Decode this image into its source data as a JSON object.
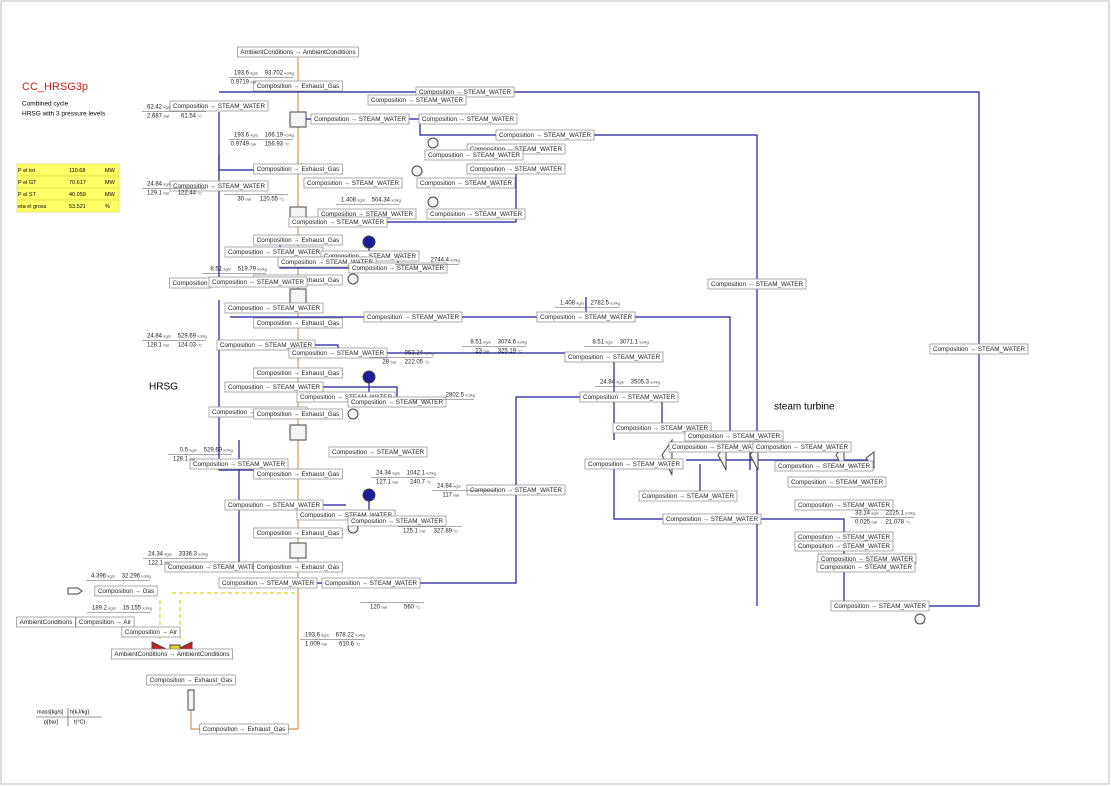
{
  "header": {
    "title": "CC_HRSG3p",
    "subtitle": [
      "Combined cycle",
      "HRSG with 3 pressure levels"
    ]
  },
  "results_table": {
    "rows": [
      [
        "P el tot",
        "110.68",
        "MW"
      ],
      [
        "P el GT",
        "70.617",
        "MW"
      ],
      [
        "P el ST",
        "40.059",
        "MW"
      ],
      [
        "eta el gross",
        "53.521",
        "%"
      ]
    ]
  },
  "section_labels": [
    "HRSG",
    "steam turbine"
  ],
  "units": {
    "m": "kg/s",
    "h": "kJ/kg",
    "p": "bar",
    "t": "°C"
  },
  "legend": {
    "m": "mass[kg/s]",
    "h": "h[kJ/kg]",
    "p": "p[bar]",
    "t": "t(°C)"
  },
  "connectors": [
    "AmbientConditions → AmbientConditions",
    "Composition → Exhaust_Gas",
    "Composition → STEAM_WATER",
    "Composition → STEAM_WATER",
    "Composition → STEAM_WATER",
    "Composition → STEAM_WATER",
    "Composition → STEAM_WATER",
    "Composition → STEAM_WATER",
    "Composition → STEAM_WATER",
    "Composition → STEAM_WATER",
    "Composition → Exhaust_Gas",
    "Composition → STEAM_WATER",
    "Composition → STEAM_WATER",
    "Composition → STEAM_WATER",
    "Composition → STEAM_WATER",
    "Composition → STEAM_WATER",
    "Composition → STEAM_WATER",
    "Composition → STEAM_WATER",
    "Composition → Exhaust_Gas",
    "Composition → STEAM_WATER",
    "Composition → STEAM_WATER",
    "Composition → STEAM_WATER",
    "Composition → STEAM_WATER",
    "Composition → Exhaust_Gas",
    "Composition",
    "Composition → STEAM_WATER",
    "Composition → STEAM_WATER",
    "Composition → STEAM_WATER",
    "Composition → STEAM_WATER",
    "Composition → STEAM_WATER",
    "Composition → Exhaust_Gas",
    "Composition → STEAM_WATER",
    "Composition → STEAM_WATER",
    "Composition → STEAM_WATER",
    "Composition → STEAM_WATER",
    "Composition → Exhaust_Gas",
    "Composition → STEAM_WATER",
    "Composition → STEAM_WATER",
    "Composition → STEAM_WATER",
    "Composition → STEAM_WATER",
    "Composition → Exhaust_Gas",
    "Composition → STEAM_WATER",
    "Composition → STEAM_WATER",
    "Composition → STEAM_WATER",
    "Composition → STEAM_WATER",
    "Composition → STEAM_WATER",
    "Composition → STEAM_WATER",
    "Composition → STEAM_WATER",
    "Composition → STEAM_WATER",
    "Composition → STEAM_WATER",
    "Composition → Exhaust_Gas",
    "Composition → STEAM_WATER",
    "Composition → STEAM_WATER",
    "Composition → STEAM_WATER",
    "Composition → STEAM_WATER",
    "Composition → STEAM_WATER",
    "Composition → STEAM_WATER",
    "Composition → STEAM_WATER",
    "Composition → STEAM_WATER",
    "Composition → Exhaust_Gas",
    "Composition → STEAM_WATER",
    "Composition → STEAM_WATER",
    "Composition → STEAM_WATER",
    "Composition → STEAM_WATER",
    "Composition → STEAM_WATER",
    "Composition → Exhaust_Gas",
    "Composition → STEAM_WATER",
    "Composition → STEAM_WATER",
    "Composition → Gas",
    "Composition → Air",
    "AmbientConditions",
    "Composition → Air",
    "AmbientConditions → AmbientConditions",
    "Composition → Exhaust_Gas",
    "Composition → Exhaust_Gas",
    "Composition → STEAM_WATER"
  ],
  "stream_values": [
    {
      "m": "193.6",
      "h": "93.702",
      "p": "0.9719"
    },
    {
      "m": "62.42",
      "p": "2.687",
      "t": "61.54"
    },
    {
      "m": "193.6",
      "h": "166.19",
      "p": "0.9749",
      "t": "156.93"
    },
    {
      "m": "24.84",
      "p": "129.1",
      "t": "122.44"
    },
    {
      "p": "30",
      "t": "120.55"
    },
    {
      "m": "1.408",
      "h": "504.34"
    },
    {
      "h": "2744.4"
    },
    {
      "m": "8.51",
      "h": "519.79"
    },
    {
      "m": "24.84",
      "h": "529.69",
      "p": "128.1",
      "t": "124.03"
    },
    {
      "h": "953.24",
      "p": "28",
      "t": "222.05"
    },
    {
      "m": "8.51",
      "h": "3074.6",
      "p": "23",
      "t": "325.19"
    },
    {
      "m": "1.408",
      "h": "2782.5"
    },
    {
      "m": "8.51",
      "h": "3071.1"
    },
    {
      "m": "24.84",
      "h": "3505.3"
    },
    {
      "h": "2802.5"
    },
    {
      "m": "0.5",
      "h": "529.69",
      "p": "128.1"
    },
    {
      "m": "24.34",
      "h": "1042.1",
      "p": "127.1",
      "t": "240.7"
    },
    {
      "m": "24.84",
      "p": "117"
    },
    {
      "p": "125.1",
      "t": "327.89"
    },
    {
      "m": "24.34",
      "h": "3336.3",
      "p": "122.1"
    },
    {
      "m": "4.396",
      "h": "32.296"
    },
    {
      "m": "189.2",
      "h": "15.155"
    },
    {
      "m": "193.6",
      "h": "678.22",
      "p": "1.009",
      "t": "610.6"
    },
    {
      "m": "33.14",
      "h": "2225.1",
      "p": "0.025",
      "t": "21.078"
    },
    {
      "p": "120",
      "t": "560"
    }
  ]
}
